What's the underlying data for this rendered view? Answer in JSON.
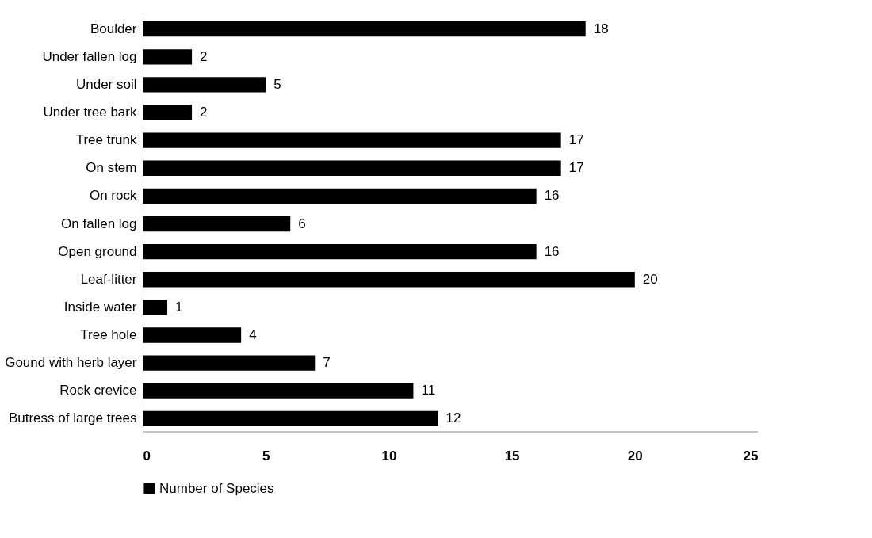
{
  "chart_data": {
    "type": "bar",
    "orientation": "horizontal",
    "categories": [
      "Boulder",
      "Under fallen log",
      "Under soil",
      "Under tree bark",
      "Tree trunk",
      "On stem",
      "On rock",
      "On fallen log",
      "Open ground",
      "Leaf-litter",
      "Inside water",
      "Tree hole",
      "Gound with herb layer",
      "Rock crevice",
      "Butress of large trees"
    ],
    "series": [
      {
        "name": "Number of Species",
        "color": "#000000",
        "values": [
          18,
          2,
          5,
          2,
          17,
          17,
          16,
          6,
          16,
          20,
          1,
          4,
          7,
          11,
          12
        ]
      }
    ],
    "xlim": [
      0,
      25
    ],
    "xticks": [
      0,
      5,
      10,
      15,
      20,
      25
    ],
    "data_labels": true,
    "grid": false,
    "legend": "bottom"
  }
}
